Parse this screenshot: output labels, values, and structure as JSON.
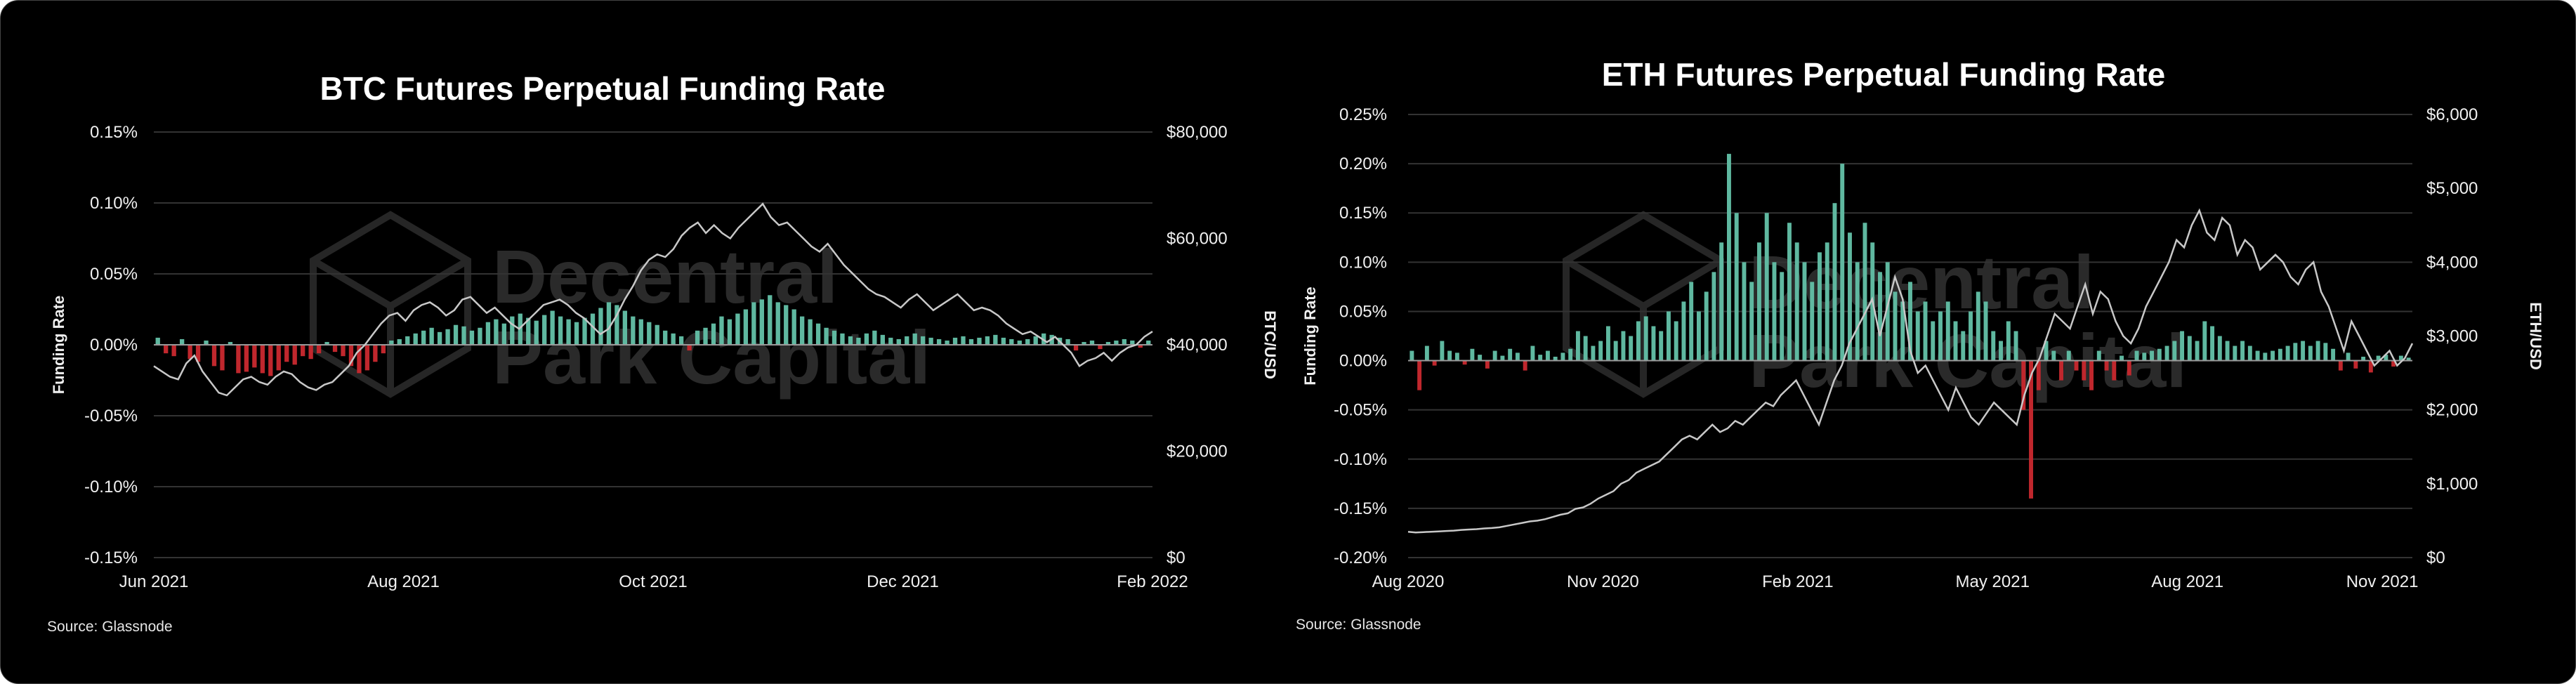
{
  "chart_data": [
    {
      "type": "bar",
      "title": "BTC Futures Perpetual Funding Rate",
      "source": "Source: Glassnode",
      "watermark": [
        "Decentral",
        "Park Capital"
      ],
      "ylabel": "Funding Rate",
      "y2label": "BTC/USD",
      "ylim": [
        -0.15,
        0.15
      ],
      "y2lim": [
        0,
        80000
      ],
      "yticks": [
        "0.15%",
        "0.10%",
        "0.05%",
        "0.00%",
        "-0.05%",
        "-0.10%",
        "-0.15%"
      ],
      "y2ticks": [
        "$80,000",
        "$60,000",
        "$40,000",
        "$20,000",
        "$0"
      ],
      "xticks": [
        "Jun 2021",
        "Aug 2021",
        "Oct 2021",
        "Dec 2021",
        "Feb 2022"
      ],
      "grid": true,
      "colors": {
        "positive": "#5fb8a0",
        "negative": "#c0272d",
        "price": "#c8c8c8"
      },
      "funding_rate": [
        0.005,
        -0.006,
        -0.008,
        0.004,
        -0.01,
        -0.012,
        0.003,
        -0.015,
        -0.018,
        0.002,
        -0.02,
        -0.019,
        -0.016,
        -0.02,
        -0.022,
        -0.018,
        -0.012,
        -0.014,
        -0.008,
        -0.01,
        -0.006,
        0.002,
        -0.005,
        -0.008,
        -0.015,
        -0.02,
        -0.018,
        -0.012,
        -0.006,
        0.003,
        0.004,
        0.006,
        0.008,
        0.01,
        0.012,
        0.009,
        0.011,
        0.014,
        0.013,
        0.01,
        0.012,
        0.016,
        0.018,
        0.015,
        0.02,
        0.022,
        0.019,
        0.017,
        0.021,
        0.024,
        0.02,
        0.018,
        0.016,
        0.019,
        0.022,
        0.026,
        0.03,
        0.028,
        0.024,
        0.02,
        0.018,
        0.016,
        0.014,
        0.01,
        0.008,
        0.006,
        -0.004,
        0.01,
        0.012,
        0.015,
        0.02,
        0.018,
        0.022,
        0.025,
        0.03,
        0.032,
        0.035,
        0.03,
        0.028,
        0.025,
        0.02,
        0.018,
        0.015,
        0.012,
        0.01,
        0.008,
        0.006,
        0.005,
        0.008,
        0.01,
        0.007,
        0.005,
        0.004,
        0.006,
        0.008,
        0.006,
        0.005,
        0.004,
        0.003,
        0.005,
        0.006,
        0.004,
        0.005,
        0.006,
        0.007,
        0.005,
        0.004,
        0.003,
        0.004,
        0.006,
        0.008,
        0.007,
        0.005,
        0.004,
        -0.004,
        0.002,
        0.003,
        -0.003,
        0.002,
        0.003,
        0.004,
        0.003,
        -0.002,
        0.003
      ],
      "price": [
        36000,
        35000,
        34000,
        33500,
        36500,
        38000,
        35000,
        33000,
        31000,
        30500,
        32000,
        33500,
        34000,
        33000,
        32500,
        34000,
        35000,
        34500,
        33000,
        32000,
        31500,
        32500,
        33000,
        34500,
        36000,
        38500,
        40000,
        42000,
        44000,
        45500,
        46000,
        44500,
        46500,
        47500,
        48000,
        47000,
        45500,
        46500,
        48500,
        49000,
        47500,
        46000,
        47000,
        45500,
        44000,
        43000,
        44500,
        46000,
        47500,
        48000,
        48500,
        47500,
        46000,
        45000,
        43500,
        42000,
        43000,
        45500,
        48500,
        51000,
        54000,
        56000,
        57000,
        56500,
        58000,
        60500,
        62000,
        63000,
        61000,
        62500,
        61000,
        60000,
        62000,
        63500,
        65000,
        66500,
        64000,
        62500,
        63000,
        61500,
        60000,
        58500,
        57500,
        59000,
        57000,
        55000,
        53500,
        52000,
        50500,
        49500,
        49000,
        48000,
        47000,
        48500,
        49500,
        48000,
        46500,
        47500,
        48500,
        49500,
        48000,
        46500,
        47000,
        46500,
        45500,
        44000,
        43000,
        42000,
        42500,
        41500,
        40500,
        41500,
        40000,
        38500,
        36000,
        37000,
        37500,
        38500,
        37000,
        38500,
        39500,
        40000,
        41500,
        42500
      ]
    },
    {
      "type": "bar",
      "title": "ETH Futures Perpetual Funding Rate",
      "source": "Source: Glassnode",
      "watermark": [
        "Decentral",
        "Park Capital"
      ],
      "ylabel": "Funding Rate",
      "y2label": "ETH/USD",
      "ylim": [
        -0.2,
        0.25
      ],
      "y2lim": [
        0,
        6000
      ],
      "yticks": [
        "0.25%",
        "0.20%",
        "0.15%",
        "0.10%",
        "0.05%",
        "0.00%",
        "-0.05%",
        "-0.10%",
        "-0.15%",
        "-0.20%"
      ],
      "y2ticks": [
        "$6,000",
        "$5,000",
        "$4,000",
        "$3,000",
        "$2,000",
        "$1,000",
        "$0"
      ],
      "xticks": [
        "Aug 2020",
        "Nov 2020",
        "Feb 2021",
        "May 2021",
        "Aug 2021",
        "Nov 2021"
      ],
      "grid": true,
      "colors": {
        "positive": "#5fb8a0",
        "negative": "#c0272d",
        "price": "#c8c8c8"
      },
      "funding_rate": [
        0.01,
        -0.03,
        0.015,
        -0.005,
        0.02,
        0.01,
        0.008,
        -0.004,
        0.012,
        0.006,
        -0.008,
        0.01,
        0.005,
        0.012,
        0.008,
        -0.01,
        0.015,
        0.006,
        0.01,
        0.004,
        0.008,
        0.012,
        0.03,
        0.025,
        0.015,
        0.02,
        0.035,
        0.02,
        0.03,
        0.025,
        0.04,
        0.045,
        0.035,
        0.03,
        0.05,
        0.04,
        0.06,
        0.08,
        0.05,
        0.07,
        0.09,
        0.12,
        0.21,
        0.15,
        0.1,
        0.08,
        0.12,
        0.15,
        0.1,
        0.09,
        0.14,
        0.12,
        0.1,
        0.08,
        0.11,
        0.12,
        0.16,
        0.2,
        0.13,
        0.1,
        0.14,
        0.12,
        0.09,
        0.1,
        0.07,
        0.06,
        0.08,
        0.05,
        0.06,
        0.04,
        0.05,
        0.06,
        0.04,
        0.03,
        0.05,
        0.07,
        0.06,
        0.03,
        0.02,
        0.04,
        0.03,
        -0.05,
        -0.14,
        -0.03,
        0.02,
        0.01,
        -0.02,
        0.01,
        -0.01,
        -0.02,
        -0.03,
        0.01,
        -0.01,
        -0.02,
        0.005,
        -0.015,
        0.01,
        0.008,
        0.01,
        0.012,
        0.015,
        0.02,
        0.03,
        0.025,
        0.02,
        0.04,
        0.035,
        0.025,
        0.02,
        0.015,
        0.02,
        0.015,
        0.01,
        0.008,
        0.01,
        0.012,
        0.015,
        0.018,
        0.02,
        0.015,
        0.02,
        0.018,
        0.012,
        -0.01,
        0.008,
        -0.008,
        0.004,
        -0.012,
        0.005,
        0.006,
        -0.006,
        0.005,
        0.003
      ],
      "price": [
        350,
        340,
        345,
        350,
        355,
        360,
        365,
        375,
        380,
        385,
        395,
        400,
        410,
        430,
        450,
        470,
        490,
        500,
        520,
        550,
        580,
        600,
        660,
        680,
        730,
        800,
        850,
        900,
        1000,
        1050,
        1150,
        1200,
        1250,
        1300,
        1400,
        1500,
        1600,
        1650,
        1600,
        1700,
        1800,
        1700,
        1750,
        1850,
        1800,
        1900,
        2000,
        2100,
        2050,
        2200,
        2300,
        2400,
        2200,
        2000,
        1800,
        2100,
        2400,
        2600,
        2900,
        3100,
        3300,
        3500,
        3000,
        3400,
        3800,
        3500,
        2800,
        2500,
        2600,
        2400,
        2200,
        2000,
        2300,
        2100,
        1900,
        1800,
        1950,
        2100,
        2000,
        1900,
        1800,
        2200,
        2500,
        2700,
        3000,
        3300,
        3200,
        3100,
        3400,
        3700,
        3300,
        3600,
        3500,
        3200,
        3000,
        2900,
        3100,
        3400,
        3600,
        3800,
        4000,
        4300,
        4200,
        4500,
        4700,
        4400,
        4300,
        4600,
        4500,
        4100,
        4300,
        4200,
        3900,
        4000,
        4100,
        4000,
        3800,
        3700,
        3900,
        4000,
        3600,
        3400,
        3100,
        2800,
        3200,
        3000,
        2800,
        2600,
        2700,
        2800,
        2600,
        2700,
        2900
      ]
    }
  ]
}
